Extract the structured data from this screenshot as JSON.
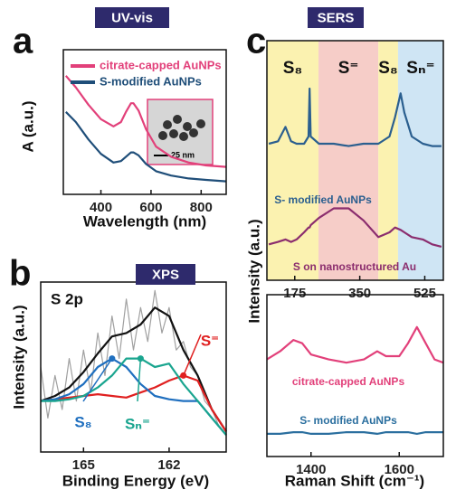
{
  "chart_data": [
    {
      "type": "line",
      "panel_label": "a",
      "title": "UV-vis",
      "xlabel": "Wavelength (nm)",
      "ylabel": "A (a.u.)",
      "xlim": [
        250,
        900
      ],
      "ylim": [
        0,
        1
      ],
      "xticks": [
        400,
        600,
        800
      ],
      "x": [
        260,
        300,
        350,
        400,
        450,
        480,
        500,
        520,
        530,
        550,
        580,
        620,
        680,
        750,
        820,
        900
      ],
      "series": [
        {
          "name": "citrate-capped AuNPs",
          "color": "#e2407a",
          "values": [
            0.82,
            0.74,
            0.62,
            0.52,
            0.47,
            0.5,
            0.57,
            0.63,
            0.63,
            0.58,
            0.45,
            0.33,
            0.26,
            0.22,
            0.2,
            0.19
          ]
        },
        {
          "name": "S-modified AuNPs",
          "color": "#1f4e79",
          "values": [
            0.57,
            0.5,
            0.38,
            0.28,
            0.22,
            0.23,
            0.26,
            0.29,
            0.29,
            0.27,
            0.21,
            0.16,
            0.13,
            0.11,
            0.1,
            0.09
          ]
        }
      ],
      "inset_label": "25 nm"
    },
    {
      "type": "line",
      "panel_label": "b",
      "title": "XPS",
      "xlabel": "Binding Energy (eV)",
      "ylabel": "Intensity (a.u.)",
      "xlim": [
        166.5,
        160
      ],
      "ylim": [
        0,
        1
      ],
      "xticks": [
        165,
        162
      ],
      "annotations": [
        "S 2p"
      ],
      "x": [
        166.5,
        166,
        165.5,
        165,
        164.5,
        164,
        163.5,
        163,
        162.5,
        162,
        161.5,
        161,
        160.5,
        160
      ],
      "series": [
        {
          "color": "#a0a0a0",
          "x": [
            166.5,
            166.25,
            166,
            165.75,
            165.5,
            165.25,
            165,
            164.75,
            164.5,
            164.25,
            164,
            163.75,
            163.5,
            163.25,
            163,
            162.75,
            162.5,
            162.25,
            162,
            161.75,
            161.5,
            161.25,
            161,
            160.75,
            160.5,
            160.25,
            160
          ],
          "values": [
            0.5,
            0.2,
            0.45,
            0.25,
            0.55,
            0.3,
            0.6,
            0.35,
            0.7,
            0.45,
            0.8,
            0.55,
            0.9,
            0.6,
            0.85,
            0.65,
            0.95,
            0.7,
            0.85,
            0.6,
            0.65,
            0.5,
            0.45,
            0.3,
            0.25,
            0.15,
            0.1
          ]
        },
        {
          "color": "#111111",
          "values": [
            0.3,
            0.33,
            0.38,
            0.47,
            0.58,
            0.68,
            0.7,
            0.75,
            0.85,
            0.8,
            0.6,
            0.45,
            0.25,
            0.12
          ]
        },
        {
          "name": "S⁼",
          "color": "#e02020",
          "values": [
            0.3,
            0.31,
            0.32,
            0.33,
            0.34,
            0.33,
            0.32,
            0.35,
            0.38,
            0.42,
            0.45,
            0.42,
            0.25,
            0.12
          ]
        },
        {
          "name": "S₈",
          "color": "#1f6fbf",
          "values": [
            0.3,
            0.31,
            0.34,
            0.4,
            0.5,
            0.55,
            0.5,
            0.4,
            0.33,
            0.31,
            0.3,
            0.3,
            0.2,
            0.1
          ]
        },
        {
          "name": "Sₙ⁼",
          "color": "#1aa58f",
          "values": [
            0.3,
            0.3,
            0.31,
            0.33,
            0.38,
            0.45,
            0.55,
            0.55,
            0.5,
            0.52,
            0.4,
            0.3,
            0.2,
            0.1
          ]
        }
      ]
    },
    {
      "type": "line",
      "panel_label": "c",
      "title": "SERS",
      "ylabel": "Intensity (a.u.)",
      "xlim": [
        100,
        575
      ],
      "ylim": [
        0,
        1
      ],
      "xticks": [
        175,
        350,
        525
      ],
      "regions": [
        {
          "label": "S₈",
          "range": [
            100,
            239
          ],
          "color": "#fbf2b0"
        },
        {
          "label": "S⁼",
          "range": [
            239,
            400
          ],
          "color": "#f6cdc8"
        },
        {
          "label": "S₈",
          "range": [
            400,
            453
          ],
          "color": "#fbf2b0"
        },
        {
          "label": "Sₙ⁼",
          "range": [
            453,
            575
          ],
          "color": "#cfe5f4"
        }
      ],
      "x": [
        105,
        130,
        150,
        165,
        180,
        200,
        212,
        215,
        218,
        240,
        280,
        320,
        360,
        400,
        430,
        445,
        460,
        470,
        490,
        520,
        545,
        570
      ],
      "series": [
        {
          "name": "S- modified AuNPs",
          "color": "#2b5f8f",
          "values": [
            0.57,
            0.58,
            0.64,
            0.58,
            0.57,
            0.57,
            0.6,
            0.8,
            0.6,
            0.57,
            0.57,
            0.56,
            0.57,
            0.57,
            0.6,
            0.68,
            0.78,
            0.7,
            0.6,
            0.57,
            0.56,
            0.56
          ]
        },
        {
          "name": "S on nanostructured Au",
          "color": "#8b2d6e",
          "values": [
            0.15,
            0.16,
            0.17,
            0.16,
            0.17,
            0.2,
            0.22,
            0.22,
            0.23,
            0.26,
            0.3,
            0.3,
            0.25,
            0.18,
            0.2,
            0.22,
            0.21,
            0.2,
            0.18,
            0.17,
            0.15,
            0.14
          ]
        }
      ]
    },
    {
      "type": "line",
      "xlabel": "Raman Shift (cm⁻¹)",
      "xlim": [
        1300,
        1700
      ],
      "ylim": [
        0,
        1
      ],
      "xticks": [
        1400,
        1600
      ],
      "x": [
        1300,
        1330,
        1360,
        1380,
        1400,
        1440,
        1480,
        1520,
        1550,
        1570,
        1600,
        1620,
        1640,
        1660,
        1680,
        1700
      ],
      "series": [
        {
          "name": "citrate-capped AuNPs",
          "color": "#e2407a",
          "values": [
            0.6,
            0.65,
            0.72,
            0.7,
            0.63,
            0.6,
            0.58,
            0.6,
            0.65,
            0.62,
            0.62,
            0.7,
            0.8,
            0.7,
            0.6,
            0.58
          ]
        },
        {
          "name": "S- modified AuNPs",
          "color": "#2b6f9f",
          "values": [
            0.14,
            0.14,
            0.15,
            0.15,
            0.14,
            0.14,
            0.15,
            0.15,
            0.14,
            0.15,
            0.15,
            0.15,
            0.14,
            0.15,
            0.15,
            0.15
          ]
        }
      ]
    }
  ]
}
